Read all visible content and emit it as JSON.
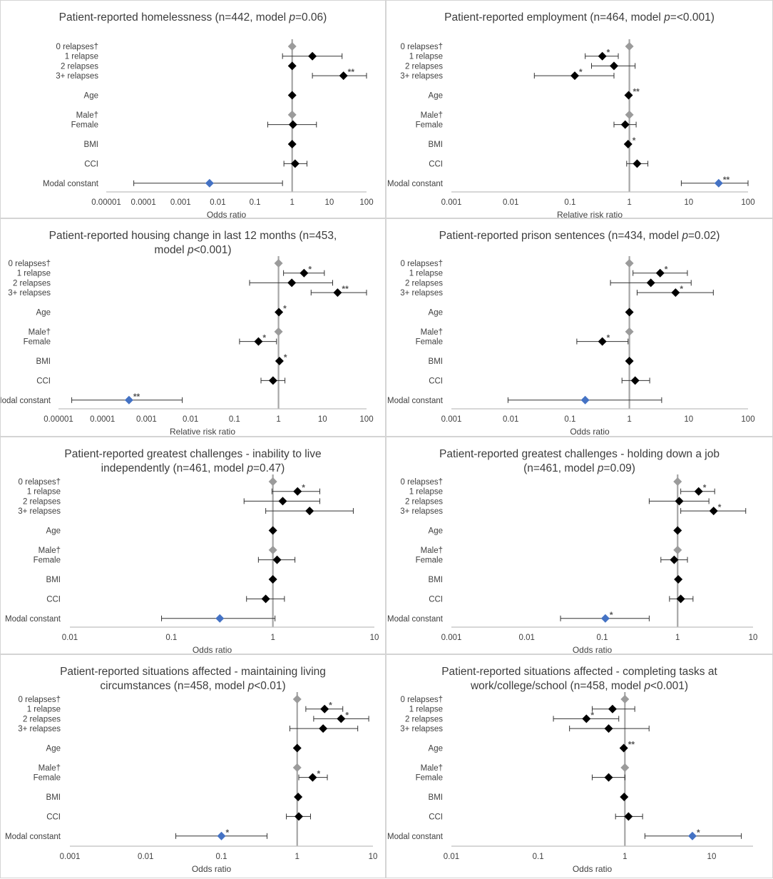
{
  "figure": {
    "colors": {
      "point": "#000000",
      "reference": "#9b9b9b",
      "constant": "#4472c4",
      "refline": "#a6a6a6",
      "axis": "#bfbfbf",
      "text": "#404040"
    }
  },
  "chart_data": [
    {
      "type": "forest",
      "title_prefix": "Patient-reported homelessness (n=442, model ",
      "title_p": "p",
      "title_suffix": "=0.06)",
      "xlabel": "Odds ratio",
      "xscale": "log",
      "xlim": [
        1e-05,
        100
      ],
      "ticks": [
        "0.00001",
        "0.0001",
        "0.001",
        "0.01",
        "0.1",
        "1",
        "10",
        "100"
      ],
      "rows": [
        {
          "label": "0 relapses†",
          "est": 1,
          "ref": true
        },
        {
          "label": "1 relapse",
          "est": 3.5,
          "lo": 0.55,
          "hi": 22
        },
        {
          "label": "2 relapses",
          "est": 1.0
        },
        {
          "label": "3+ relapses",
          "est": 24,
          "lo": 3.5,
          "hi": 140,
          "sig": "**"
        },
        {
          "label": "Age",
          "est": 1.0
        },
        {
          "label": "Male†",
          "est": 1,
          "ref": true
        },
        {
          "label": "Female",
          "est": 1.05,
          "lo": 0.22,
          "hi": 4.5
        },
        {
          "label": "BMI",
          "est": 1.0
        },
        {
          "label": "CCI",
          "est": 1.2,
          "lo": 0.6,
          "hi": 2.5
        },
        {
          "label": "Modal constant",
          "est": 0.006,
          "lo": 5.5e-05,
          "hi": 0.55,
          "constant": true
        }
      ]
    },
    {
      "type": "forest",
      "title_prefix": "Patient-reported employment (n=464, model ",
      "title_p": "p",
      "title_suffix": "=<0.001)",
      "xlabel": "Relative risk ratio",
      "xscale": "log",
      "xlim": [
        0.001,
        100
      ],
      "ticks": [
        "0.001",
        "0.01",
        "0.1",
        "1",
        "10",
        "100"
      ],
      "rows": [
        {
          "label": "0 relapses†",
          "est": 1,
          "ref": true
        },
        {
          "label": "1 relapse",
          "est": 0.35,
          "lo": 0.18,
          "hi": 0.65,
          "sig": "*"
        },
        {
          "label": "2 relapses",
          "est": 0.55,
          "lo": 0.23,
          "hi": 1.25
        },
        {
          "label": "3+ relapses",
          "est": 0.12,
          "lo": 0.025,
          "hi": 0.55,
          "sig": "*"
        },
        {
          "label": "Age",
          "est": 0.97,
          "sig": "**"
        },
        {
          "label": "Male†",
          "est": 1,
          "ref": true
        },
        {
          "label": "Female",
          "est": 0.85,
          "lo": 0.55,
          "hi": 1.3
        },
        {
          "label": "BMI",
          "est": 0.95,
          "sig": "*"
        },
        {
          "label": "CCI",
          "est": 1.35,
          "lo": 0.9,
          "hi": 2.05
        },
        {
          "label": "Modal constant",
          "est": 32,
          "lo": 7.5,
          "hi": 130,
          "sig": "**",
          "constant": true
        }
      ]
    },
    {
      "type": "forest",
      "title_prefix": "Patient-reported housing change in last 12 months (n=453,\nmodel ",
      "title_p": "p",
      "title_suffix": "<0.001)",
      "xlabel": "Relative risk ratio",
      "xscale": "log",
      "xlim": [
        1e-05,
        100
      ],
      "ticks": [
        "0.00001",
        "0.0001",
        "0.001",
        "0.01",
        "0.1",
        "1",
        "10",
        "100"
      ],
      "rows": [
        {
          "label": "0 relapses†",
          "est": 1,
          "ref": true
        },
        {
          "label": "1 relapse",
          "est": 3.8,
          "lo": 1.3,
          "hi": 11,
          "sig": "*"
        },
        {
          "label": "2 relapses",
          "est": 2.0,
          "lo": 0.22,
          "hi": 17
        },
        {
          "label": "3+ relapses",
          "est": 22,
          "lo": 5.5,
          "hi": 100,
          "sig": "**"
        },
        {
          "label": "Age",
          "est": 1.02,
          "sig": "*"
        },
        {
          "label": "Male†",
          "est": 1,
          "ref": true
        },
        {
          "label": "Female",
          "est": 0.35,
          "lo": 0.13,
          "hi": 0.9,
          "sig": "*"
        },
        {
          "label": "BMI",
          "est": 1.05,
          "sig": "*"
        },
        {
          "label": "CCI",
          "est": 0.75,
          "lo": 0.4,
          "hi": 1.4
        },
        {
          "label": "Modal constant",
          "est": 0.0004,
          "lo": 2e-05,
          "hi": 0.0065,
          "sig": "**",
          "constant": true
        }
      ]
    },
    {
      "type": "forest",
      "title_prefix": "Patient-reported prison sentences (n=434, model ",
      "title_p": "p",
      "title_suffix": "=0.02)",
      "xlabel": "Odds ratio",
      "xscale": "log",
      "xlim": [
        0.001,
        100
      ],
      "ticks": [
        "0.001",
        "0.01",
        "0.1",
        "1",
        "10",
        "100"
      ],
      "rows": [
        {
          "label": "0 relapses†",
          "est": 1,
          "ref": true
        },
        {
          "label": "1 relapse",
          "est": 3.3,
          "lo": 1.15,
          "hi": 9.5,
          "sig": "*"
        },
        {
          "label": "2 relapses",
          "est": 2.3,
          "lo": 0.48,
          "hi": 11
        },
        {
          "label": "3+ relapses",
          "est": 6,
          "lo": 1.35,
          "hi": 26,
          "sig": "*"
        },
        {
          "label": "Age",
          "est": 1.0
        },
        {
          "label": "Male†",
          "est": 1,
          "ref": true
        },
        {
          "label": "Female",
          "est": 0.35,
          "lo": 0.13,
          "hi": 0.95,
          "sig": "*"
        },
        {
          "label": "BMI",
          "est": 1.0
        },
        {
          "label": "CCI",
          "est": 1.25,
          "lo": 0.75,
          "hi": 2.2
        },
        {
          "label": "Modal constant",
          "est": 0.18,
          "lo": 0.009,
          "hi": 3.5,
          "constant": true
        }
      ]
    },
    {
      "type": "forest",
      "title_prefix": "Patient-reported greatest challenges - inability to live\nindependently (n=461, model ",
      "title_p": "p",
      "title_suffix": "=0.47)",
      "xlabel": "Odds ratio",
      "xscale": "log",
      "xlim": [
        0.01,
        10
      ],
      "ticks": [
        "0.01",
        "0.1",
        "1",
        "10"
      ],
      "rows": [
        {
          "label": "0 relapses†",
          "est": 1,
          "ref": true
        },
        {
          "label": "1 relapse",
          "est": 1.75,
          "lo": 0.98,
          "hi": 2.9,
          "sig": "*"
        },
        {
          "label": "2 relapses",
          "est": 1.25,
          "lo": 0.52,
          "hi": 2.9
        },
        {
          "label": "3+ relapses",
          "est": 2.3,
          "lo": 0.85,
          "hi": 6.2
        },
        {
          "label": "Age",
          "est": 1.0
        },
        {
          "label": "Male†",
          "est": 1,
          "ref": true
        },
        {
          "label": "Female",
          "est": 1.1,
          "lo": 0.72,
          "hi": 1.65
        },
        {
          "label": "BMI",
          "est": 1.0
        },
        {
          "label": "CCI",
          "est": 0.85,
          "lo": 0.55,
          "hi": 1.3
        },
        {
          "label": "Modal constant",
          "est": 0.3,
          "lo": 0.08,
          "hi": 1.05,
          "constant": true
        }
      ]
    },
    {
      "type": "forest",
      "title_prefix": "Patient-reported greatest challenges - holding down a job\n(n=461, model ",
      "title_p": "p",
      "title_suffix": "=0.09)",
      "xlabel": "Odds ratio",
      "xscale": "log",
      "xlim": [
        0.001,
        10
      ],
      "ticks": [
        "0.001",
        "0.01",
        "0.1",
        "1",
        "10"
      ],
      "rows": [
        {
          "label": "0 relapses†",
          "est": 1,
          "ref": true
        },
        {
          "label": "1 relapse",
          "est": 1.9,
          "lo": 1.1,
          "hi": 3.1,
          "sig": "*"
        },
        {
          "label": "2 relapses",
          "est": 1.05,
          "lo": 0.42,
          "hi": 2.6
        },
        {
          "label": "3+ relapses",
          "est": 3.0,
          "lo": 1.1,
          "hi": 8.0,
          "sig": "*"
        },
        {
          "label": "Age",
          "est": 1.0
        },
        {
          "label": "Male†",
          "est": 1,
          "ref": true
        },
        {
          "label": "Female",
          "est": 0.9,
          "lo": 0.6,
          "hi": 1.35
        },
        {
          "label": "BMI",
          "est": 1.02
        },
        {
          "label": "CCI",
          "est": 1.1,
          "lo": 0.78,
          "hi": 1.6
        },
        {
          "label": "Modal constant",
          "est": 0.11,
          "lo": 0.028,
          "hi": 0.42,
          "sig": "*",
          "constant": true
        }
      ]
    },
    {
      "type": "forest",
      "title_prefix": "Patient-reported situations affected - maintaining living\ncircumstances (n=458, model ",
      "title_p": "p",
      "title_suffix": "<0.01)",
      "xlabel": "Odds ratio",
      "xscale": "log",
      "xlim": [
        0.001,
        10
      ],
      "ticks": [
        "0.001",
        "0.01",
        "0.1",
        "1",
        "10"
      ],
      "rows": [
        {
          "label": "0 relapses†",
          "est": 1,
          "ref": true
        },
        {
          "label": "1 relapse",
          "est": 2.3,
          "lo": 1.3,
          "hi": 4.0,
          "sig": "*"
        },
        {
          "label": "2 relapses",
          "est": 3.8,
          "lo": 1.65,
          "hi": 8.8,
          "sig": "*"
        },
        {
          "label": "3+ relapses",
          "est": 2.2,
          "lo": 0.8,
          "hi": 6.3
        },
        {
          "label": "Age",
          "est": 1.0
        },
        {
          "label": "Male†",
          "est": 1,
          "ref": true
        },
        {
          "label": "Female",
          "est": 1.6,
          "lo": 1.05,
          "hi": 2.5,
          "sig": "*"
        },
        {
          "label": "BMI",
          "est": 1.03
        },
        {
          "label": "CCI",
          "est": 1.05,
          "lo": 0.72,
          "hi": 1.5
        },
        {
          "label": "Modal constant",
          "est": 0.1,
          "lo": 0.025,
          "hi": 0.4,
          "sig": "*",
          "constant": true
        }
      ]
    },
    {
      "type": "forest",
      "title_prefix": "Patient-reported situations affected - completing tasks at\nwork/college/school (n=458, model ",
      "title_p": "p",
      "title_suffix": "<0.001)",
      "xlabel": "Odds ratio",
      "xscale": "log",
      "xlim": [
        0.01,
        30
      ],
      "ticks": [
        "0.01",
        "0.1",
        "1",
        "10"
      ],
      "rows": [
        {
          "label": "0 relapses†",
          "est": 1,
          "ref": true
        },
        {
          "label": "1 relapse",
          "est": 0.72,
          "lo": 0.42,
          "hi": 1.3
        },
        {
          "label": "2 relapses",
          "est": 0.36,
          "lo": 0.15,
          "hi": 0.85,
          "sig": "*"
        },
        {
          "label": "3+ relapses",
          "est": 0.65,
          "lo": 0.23,
          "hi": 1.9
        },
        {
          "label": "Age",
          "est": 0.97,
          "sig": "**"
        },
        {
          "label": "Male†",
          "est": 1,
          "ref": true
        },
        {
          "label": "Female",
          "est": 0.65,
          "lo": 0.42,
          "hi": 1.0
        },
        {
          "label": "BMI",
          "est": 0.98
        },
        {
          "label": "CCI",
          "est": 1.1,
          "lo": 0.78,
          "hi": 1.6
        },
        {
          "label": "Modal constant",
          "est": 6,
          "lo": 1.7,
          "hi": 22,
          "sig": "*",
          "constant": true
        }
      ]
    }
  ]
}
